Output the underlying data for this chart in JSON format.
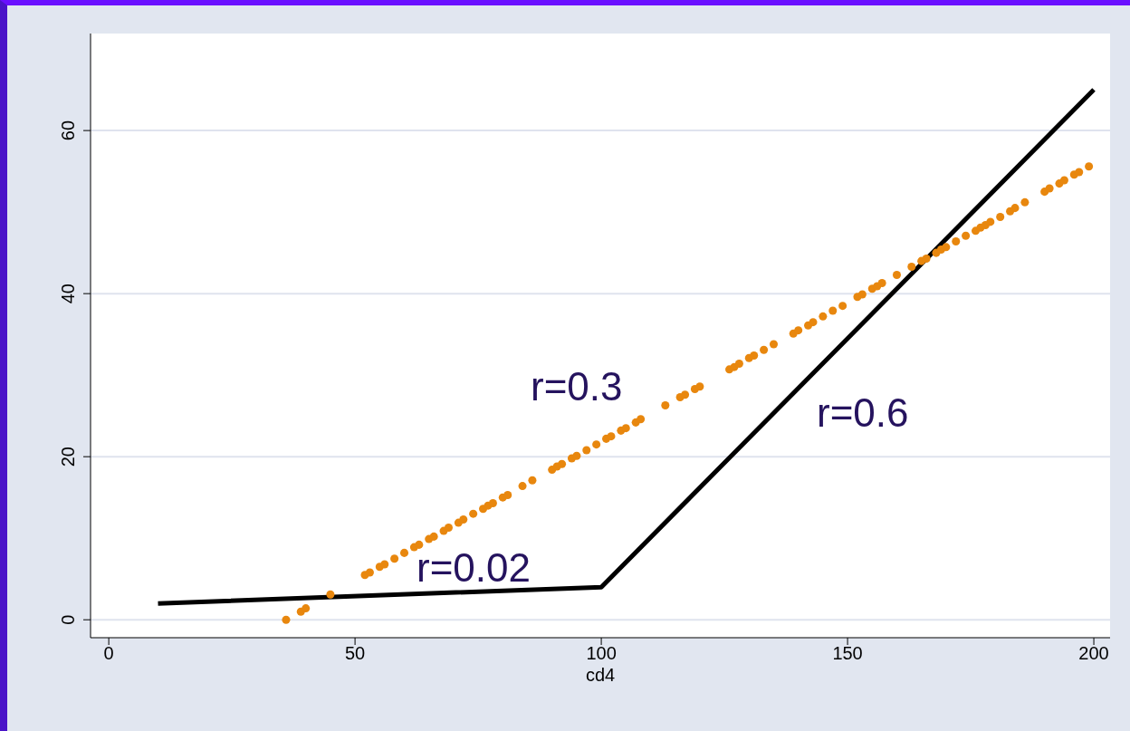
{
  "chart_data": {
    "type": "scatter",
    "xlabel": "cd4",
    "xlim": [
      -3.7,
      203.3
    ],
    "xticks": [
      0,
      50,
      100,
      150,
      200
    ],
    "ylim": [
      -2.2,
      71.9
    ],
    "yticks": [
      0,
      20,
      40,
      60
    ],
    "grid": "y",
    "series": [
      {
        "color": "#e8870e",
        "marker": "circle",
        "x": [
          36,
          39,
          40,
          45,
          52,
          53,
          55,
          56,
          58,
          60,
          62,
          63,
          65,
          66,
          68,
          69,
          71,
          72,
          74,
          76,
          77,
          78,
          80,
          81,
          84,
          86,
          90,
          91,
          92,
          94,
          95,
          97,
          99,
          101,
          102,
          104,
          105,
          107,
          108,
          113,
          116,
          117,
          119,
          120,
          126,
          127,
          128,
          130,
          131,
          133,
          135,
          139,
          140,
          142,
          143,
          145,
          147,
          149,
          152,
          153,
          155,
          156,
          157,
          160,
          163,
          165,
          166,
          168,
          169,
          170,
          172,
          174,
          176,
          177,
          178,
          179,
          181,
          183,
          184,
          186,
          190,
          191,
          193,
          194,
          196,
          197,
          199
        ],
        "values": [
          0,
          1.0,
          1.4,
          3.1,
          5.5,
          5.8,
          6.5,
          6.8,
          7.5,
          8.2,
          8.9,
          9.2,
          9.9,
          10.2,
          10.9,
          11.3,
          11.9,
          12.3,
          13.0,
          13.6,
          14.0,
          14.3,
          15.0,
          15.3,
          16.4,
          17.1,
          18.4,
          18.8,
          19.1,
          19.8,
          20.1,
          20.8,
          21.5,
          22.2,
          22.5,
          23.2,
          23.5,
          24.2,
          24.6,
          26.3,
          27.3,
          27.6,
          28.3,
          28.6,
          30.7,
          31.0,
          31.4,
          32.1,
          32.4,
          33.1,
          33.8,
          35.1,
          35.5,
          36.1,
          36.5,
          37.2,
          37.9,
          38.5,
          39.6,
          39.9,
          40.6,
          40.9,
          41.3,
          42.3,
          43.3,
          44.0,
          44.3,
          45.0,
          45.4,
          45.7,
          46.4,
          47.1,
          47.7,
          48.1,
          48.4,
          48.8,
          49.4,
          50.1,
          50.5,
          51.2,
          52.5,
          52.9,
          53.5,
          53.9,
          54.6,
          54.9,
          55.6
        ]
      },
      {
        "type": "line",
        "color": "#000000",
        "marker": "none",
        "line_style": "solid",
        "x": [
          10,
          100,
          200
        ],
        "values": [
          2,
          4,
          65
        ]
      }
    ],
    "annotations": [
      "r=0.3",
      "r=0.6",
      "r=0.02"
    ]
  }
}
